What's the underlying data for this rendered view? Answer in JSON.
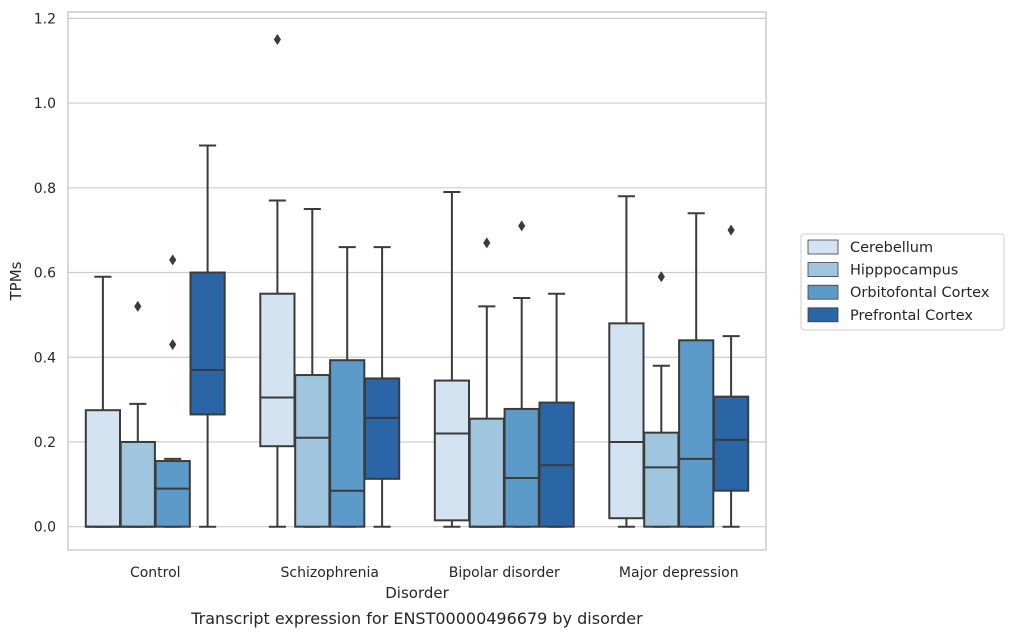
{
  "chart_data": {
    "type": "box",
    "title": "",
    "caption": "Transcript expression for ENST00000496679 by disorder",
    "xlabel": "Disorder",
    "ylabel": "TPMs",
    "ylim": [
      -0.055,
      1.215
    ],
    "yticks": [
      "0.0",
      "0.2",
      "0.4",
      "0.6",
      "0.8",
      "1.0",
      "1.2"
    ],
    "grid": "horizontal",
    "legend_position": "right",
    "categories": [
      "Control",
      "Schizophrenia",
      "Bipolar disorder",
      "Major depression"
    ],
    "series": [
      {
        "name": "Cerebellum",
        "color": "#d4e3f1",
        "boxes": [
          {
            "min": 0.0,
            "q1": 0.0,
            "median": 0.0,
            "q3": 0.275,
            "max": 0.59,
            "outliers": []
          },
          {
            "min": 0.0,
            "q1": 0.19,
            "median": 0.305,
            "q3": 0.55,
            "max": 0.77,
            "outliers": [
              1.15
            ]
          },
          {
            "min": 0.0,
            "q1": 0.015,
            "median": 0.22,
            "q3": 0.345,
            "max": 0.79,
            "outliers": []
          },
          {
            "min": 0.0,
            "q1": 0.02,
            "median": 0.2,
            "q3": 0.48,
            "max": 0.78,
            "outliers": []
          }
        ]
      },
      {
        "name": "Hipppocampus",
        "color": "#a0c5de",
        "boxes": [
          {
            "min": 0.0,
            "q1": 0.0,
            "median": 0.0,
            "q3": 0.2,
            "max": 0.29,
            "outliers": [
              0.52
            ]
          },
          {
            "min": 0.0,
            "q1": 0.0,
            "median": 0.21,
            "q3": 0.358,
            "max": 0.75,
            "outliers": []
          },
          {
            "min": 0.0,
            "q1": 0.0,
            "median": 0.0,
            "q3": 0.255,
            "max": 0.52,
            "outliers": [
              0.67
            ]
          },
          {
            "min": 0.0,
            "q1": 0.0,
            "median": 0.14,
            "q3": 0.222,
            "max": 0.38,
            "outliers": [
              0.59
            ]
          }
        ]
      },
      {
        "name": "Orbitofontal Cortex",
        "color": "#5c9ac9",
        "boxes": [
          {
            "min": 0.0,
            "q1": 0.0,
            "median": 0.09,
            "q3": 0.155,
            "max": 0.16,
            "outliers": [
              0.43,
              0.63
            ]
          },
          {
            "min": 0.0,
            "q1": 0.0,
            "median": 0.085,
            "q3": 0.393,
            "max": 0.66,
            "outliers": []
          },
          {
            "min": 0.0,
            "q1": 0.0,
            "median": 0.115,
            "q3": 0.278,
            "max": 0.54,
            "outliers": [
              0.71
            ]
          },
          {
            "min": 0.0,
            "q1": 0.0,
            "median": 0.16,
            "q3": 0.44,
            "max": 0.74,
            "outliers": []
          }
        ]
      },
      {
        "name": "Prefrontal Cortex",
        "color": "#2a66a5",
        "boxes": [
          {
            "min": 0.0,
            "q1": 0.265,
            "median": 0.37,
            "q3": 0.6,
            "max": 0.9,
            "outliers": []
          },
          {
            "min": 0.0,
            "q1": 0.113,
            "median": 0.257,
            "q3": 0.35,
            "max": 0.66,
            "outliers": []
          },
          {
            "min": 0.0,
            "q1": 0.0,
            "median": 0.145,
            "q3": 0.293,
            "max": 0.55,
            "outliers": []
          },
          {
            "min": 0.0,
            "q1": 0.085,
            "median": 0.205,
            "q3": 0.307,
            "max": 0.45,
            "outliers": [
              0.7
            ]
          }
        ]
      }
    ]
  }
}
